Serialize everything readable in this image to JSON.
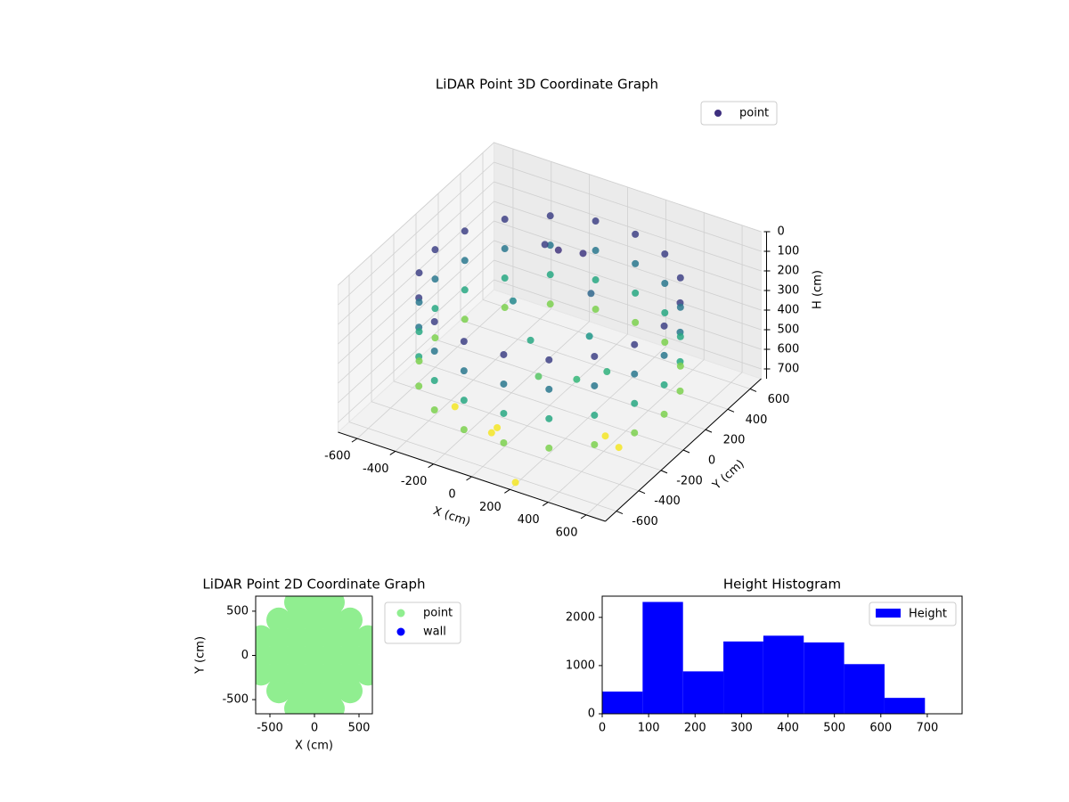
{
  "chart_data": [
    {
      "type": "scatter3d",
      "title": "LiDAR Point 3D Coordinate Graph",
      "xlabel": "X (cm)",
      "ylabel": "Y (cm)",
      "zlabel": "H (cm)",
      "xlim": [
        -700,
        700
      ],
      "ylim": [
        -700,
        700
      ],
      "zlim": [
        750,
        0
      ],
      "xticks": [
        -600,
        -400,
        -200,
        0,
        200,
        400,
        600
      ],
      "yticks": [
        -600,
        -400,
        -200,
        0,
        200,
        400,
        600
      ],
      "zticks": [
        0,
        100,
        200,
        300,
        400,
        500,
        600,
        700
      ],
      "colormap": "viridis",
      "grid": true,
      "legend": "upper right",
      "series": [
        {
          "name": "point",
          "color": "#3e2f7f",
          "x": [
            600,
            564,
            460,
            300,
            104,
            -104,
            -300,
            -460,
            -564,
            -600,
            -564,
            -460,
            -300,
            -104,
            104,
            300,
            460,
            564,
            600,
            564,
            460,
            300,
            104,
            -104,
            -300,
            -460,
            -564,
            -600,
            -564,
            -460,
            -300,
            -104,
            104,
            300,
            460,
            564,
            600,
            564,
            460,
            300,
            104,
            -104,
            -300,
            -460,
            -564,
            -600,
            -564,
            -460,
            -300,
            -104,
            104,
            300,
            460,
            564,
            600,
            564,
            460,
            300,
            104,
            -104,
            -300,
            -460,
            -564,
            -600,
            -564,
            -460,
            -300,
            -104,
            104,
            300,
            460,
            564,
            -200,
            -100,
            0,
            100,
            -250,
            200,
            300,
            0,
            -100,
            150,
            -350,
            -100,
            -100,
            200,
            350,
            450
          ],
          "y": [
            0,
            205,
            386,
            520,
            591,
            591,
            520,
            386,
            205,
            0,
            -205,
            -386,
            -520,
            -591,
            -591,
            -520,
            -386,
            -205,
            0,
            205,
            386,
            520,
            591,
            591,
            520,
            386,
            205,
            0,
            -205,
            -386,
            -520,
            -591,
            -591,
            -520,
            -386,
            -205,
            0,
            205,
            386,
            520,
            591,
            591,
            520,
            386,
            205,
            0,
            -205,
            -386,
            -520,
            -591,
            -591,
            -520,
            -386,
            -205,
            0,
            205,
            386,
            520,
            591,
            591,
            520,
            386,
            205,
            0,
            -205,
            -386,
            -520,
            -591,
            -591,
            -520,
            -386,
            -205,
            300,
            250,
            300,
            200,
            100,
            -100,
            0,
            -100,
            0,
            100,
            -250,
            -300,
            -350,
            -650,
            -100,
            -150
          ],
          "z": [
            150,
            150,
            150,
            150,
            150,
            150,
            150,
            150,
            150,
            150,
            150,
            150,
            150,
            150,
            150,
            150,
            150,
            150,
            300,
            300,
            300,
            300,
            300,
            300,
            300,
            300,
            300,
            300,
            300,
            300,
            300,
            300,
            300,
            300,
            300,
            300,
            450,
            450,
            450,
            450,
            450,
            450,
            450,
            450,
            450,
            450,
            450,
            450,
            450,
            450,
            450,
            450,
            450,
            450,
            600,
            600,
            600,
            600,
            600,
            600,
            600,
            600,
            600,
            600,
            600,
            600,
            600,
            600,
            600,
            600,
            600,
            600,
            150,
            120,
            130,
            250,
            350,
            500,
            480,
            550,
            450,
            400,
            740,
            740,
            740,
            740,
            740,
            740
          ]
        }
      ]
    },
    {
      "type": "scatter",
      "title": "LiDAR Point 2D Coordinate Graph",
      "xlabel": "X (cm)",
      "ylabel": "Y (cm)",
      "xlim": [
        -660,
        650
      ],
      "ylim": [
        -660,
        670
      ],
      "xticks": [
        -500,
        0,
        500
      ],
      "yticks": [
        -500,
        0,
        500
      ],
      "legend": "outside right",
      "series": [
        {
          "name": "point",
          "color": "#90ee90",
          "x": [
            0,
            0,
            0,
            0,
            0,
            0,
            0,
            -200,
            -200,
            -200,
            -200,
            -200,
            -200,
            -200,
            200,
            200,
            200,
            200,
            200,
            200,
            200,
            -400,
            -400,
            -400,
            -400,
            -400,
            400,
            400,
            400,
            400,
            400,
            -600,
            -600,
            -600,
            600,
            600,
            600
          ],
          "y": [
            -600,
            -400,
            -200,
            0,
            200,
            400,
            600,
            -600,
            -400,
            -200,
            0,
            200,
            400,
            600,
            -600,
            -400,
            -200,
            0,
            200,
            400,
            600,
            -400,
            -200,
            0,
            200,
            400,
            -400,
            -200,
            0,
            200,
            400,
            -200,
            0,
            200,
            -200,
            0,
            200
          ]
        },
        {
          "name": "wall",
          "color": "#0000ff",
          "x": [],
          "y": []
        }
      ]
    },
    {
      "type": "histogram",
      "title": "Height Histogram",
      "bins": [
        0,
        87,
        174,
        261,
        347,
        434,
        521,
        608,
        695
      ],
      "values": [
        460,
        2320,
        880,
        1500,
        1620,
        1480,
        1030,
        330
      ],
      "series_name": "Height",
      "color": "#0000ff",
      "xlim": [
        0,
        775
      ],
      "ylim": [
        0,
        2440
      ],
      "xticks": [
        0,
        100,
        200,
        300,
        400,
        500,
        600,
        700
      ],
      "yticks": [
        0,
        1000,
        2000
      ],
      "legend": "upper right"
    }
  ]
}
